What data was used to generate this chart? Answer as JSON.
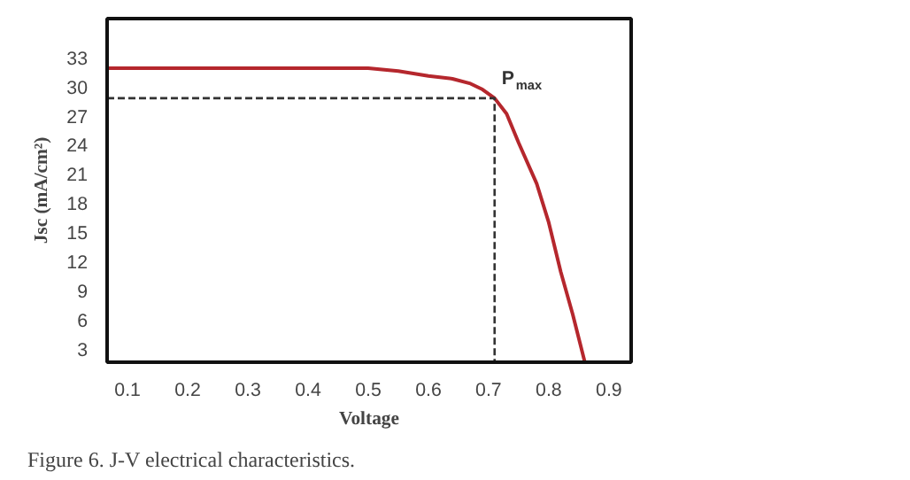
{
  "chart_data": {
    "type": "line",
    "xlabel": "Voltage",
    "ylabel": "Jsc (mA/cm²)",
    "xlim": [
      0.066,
      0.937
    ],
    "ylim": [
      1.6,
      37
    ],
    "xticks": [
      0.1,
      0.2,
      0.3,
      0.4,
      0.5,
      0.6,
      0.7,
      0.8,
      0.9
    ],
    "yticks": [
      3,
      6,
      9,
      12,
      15,
      18,
      21,
      24,
      27,
      30,
      33
    ],
    "series": [
      {
        "color": "#b5272d",
        "line_style": "solid",
        "x": [
          0.066,
          0.2,
          0.3,
          0.4,
          0.5,
          0.55,
          0.6,
          0.64,
          0.67,
          0.69,
          0.71,
          0.73,
          0.75,
          0.78,
          0.8,
          0.82,
          0.84,
          0.86
        ],
        "values": [
          31.9,
          31.9,
          31.9,
          31.9,
          31.9,
          31.6,
          31.1,
          30.8,
          30.3,
          29.7,
          28.8,
          27.2,
          24.2,
          20,
          16,
          10.9,
          6.5,
          1.6
        ]
      },
      {
        "color": "#333333",
        "line_style": "dashed",
        "x": [
          0.066,
          0.71,
          0.71
        ],
        "values": [
          28.8,
          28.8,
          1.6
        ]
      }
    ],
    "annotations": [
      {
        "text": "P$_{max}$",
        "x": 0.71,
        "y": 28.8
      },
      "Figure 6. J-V electrical characteristics."
    ]
  }
}
